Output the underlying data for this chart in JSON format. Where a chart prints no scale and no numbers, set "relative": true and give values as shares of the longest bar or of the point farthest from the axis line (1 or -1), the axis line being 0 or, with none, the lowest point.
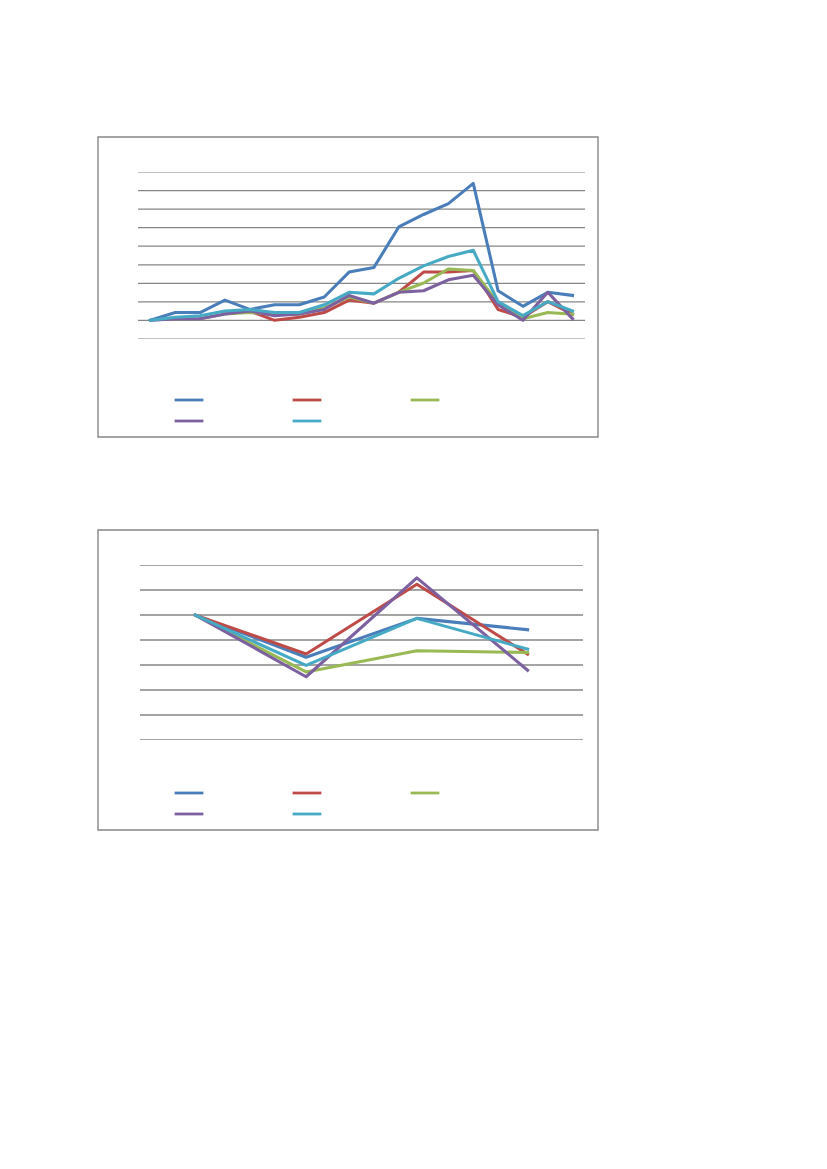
{
  "chart_data": [
    {
      "type": "line",
      "relative": true,
      "categories": [
        null,
        null,
        null,
        null,
        null,
        null,
        null,
        null,
        null,
        null,
        null,
        null,
        null,
        null,
        null,
        null,
        null,
        null
      ],
      "grid": "y",
      "marker": "none",
      "line_style": "solid",
      "series": [
        {
          "color": "#4a7ebb",
          "values": [
            0.12,
            0.17,
            0.17,
            0.25,
            0.19,
            0.22,
            0.22,
            0.27,
            0.43,
            0.46,
            0.72,
            0.8,
            0.87,
            1.0,
            0.31,
            0.21,
            0.3,
            0.28
          ]
        },
        {
          "color": "#be4b48",
          "values": [
            null,
            null,
            null,
            0.17,
            0.18,
            0.12,
            0.14,
            0.17,
            0.25,
            0.23,
            0.3,
            0.43,
            0.43,
            0.44,
            0.19,
            0.14,
            0.24,
            0.16
          ]
        },
        {
          "color": "#98b954",
          "values": [
            null,
            null,
            0.13,
            0.16,
            0.17,
            0.16,
            0.16,
            0.2,
            0.27,
            0.23,
            0.3,
            0.36,
            0.45,
            0.44,
            0.23,
            0.13,
            0.17,
            0.16
          ]
        },
        {
          "color": "#7d60a0",
          "values": [
            0.12,
            0.13,
            0.13,
            0.16,
            0.18,
            0.15,
            0.16,
            0.19,
            0.28,
            0.23,
            0.3,
            0.31,
            0.38,
            0.41,
            0.22,
            0.12,
            0.3,
            0.13
          ]
        },
        {
          "color": "#46aac5",
          "values": [
            0.12,
            0.14,
            0.15,
            0.18,
            0.19,
            0.17,
            0.17,
            0.22,
            0.3,
            0.29,
            0.39,
            0.47,
            0.53,
            0.57,
            0.24,
            0.15,
            0.24,
            0.18
          ]
        }
      ]
    },
    {
      "type": "line",
      "relative": true,
      "categories": [
        null,
        null,
        null,
        null
      ],
      "grid": "y",
      "marker": "none",
      "line_style": "solid",
      "series": [
        {
          "color": "#4a7ebb",
          "values": [
            0.77,
            0.51,
            0.75,
            0.68
          ]
        },
        {
          "color": "#be4b48",
          "values": [
            0.77,
            0.53,
            0.96,
            0.53
          ]
        },
        {
          "color": "#98b954",
          "values": [
            0.77,
            0.42,
            0.55,
            0.54
          ]
        },
        {
          "color": "#7d60a0",
          "values": [
            0.77,
            0.39,
            1.0,
            0.43
          ]
        },
        {
          "color": "#46aac5",
          "values": [
            0.77,
            0.46,
            0.75,
            0.56
          ]
        }
      ]
    }
  ]
}
